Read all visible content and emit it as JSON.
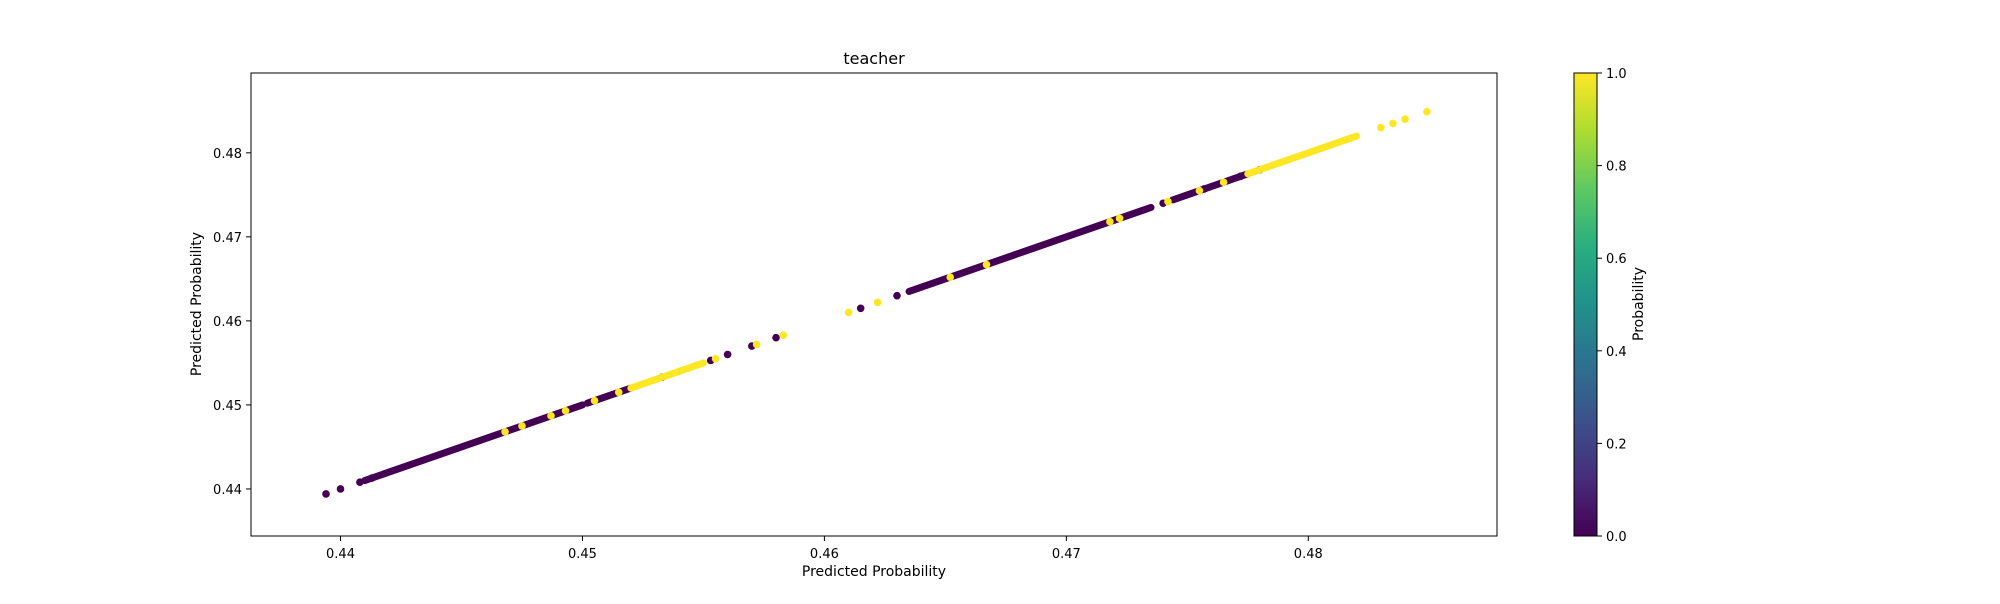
{
  "chart_data": {
    "type": "scatter",
    "title": "teacher",
    "xlabel": "Predicted Probability",
    "ylabel": "Predicted Probability",
    "xlim": [
      0.4363,
      0.4878
    ],
    "ylim": [
      0.4344,
      0.4895
    ],
    "xticks": [
      "0.44",
      "0.45",
      "0.46",
      "0.47",
      "0.48"
    ],
    "yticks": [
      "0.44",
      "0.45",
      "0.46",
      "0.47",
      "0.48"
    ],
    "grid": false,
    "colorbar": {
      "label": "Probability",
      "range": [
        0.0,
        1.0
      ],
      "ticks": [
        "0.0",
        "0.2",
        "0.4",
        "0.6",
        "0.8",
        "1.0"
      ],
      "colormap": "viridis"
    },
    "colors": {
      "class_0": "#440154",
      "class_1": "#fde725"
    },
    "series": [
      {
        "value": 0,
        "segments": [
          [
            0.441,
            0.45
          ],
          [
            0.4502,
            0.452
          ],
          [
            0.4635,
            0.4735
          ],
          [
            0.4744,
            0.4775
          ]
        ],
        "points": [
          [
            0.4394,
            0.4394
          ],
          [
            0.44,
            0.44
          ],
          [
            0.4408,
            0.4408
          ],
          [
            0.4413,
            0.4413
          ],
          [
            0.4533,
            0.4533
          ],
          [
            0.4553,
            0.4553
          ],
          [
            0.456,
            0.456
          ],
          [
            0.457,
            0.457
          ],
          [
            0.458,
            0.458
          ],
          [
            0.4615,
            0.4615
          ],
          [
            0.463,
            0.463
          ],
          [
            0.474,
            0.474
          ],
          [
            0.4757,
            0.4757
          ],
          [
            0.4772,
            0.4772
          ],
          [
            0.478,
            0.478
          ]
        ]
      },
      {
        "value": 1,
        "segments": [
          [
            0.452,
            0.455
          ],
          [
            0.4775,
            0.482
          ]
        ],
        "points": [
          [
            0.4468,
            0.4468
          ],
          [
            0.4475,
            0.4475
          ],
          [
            0.4487,
            0.4487
          ],
          [
            0.4493,
            0.4493
          ],
          [
            0.4505,
            0.4505
          ],
          [
            0.4515,
            0.4515
          ],
          [
            0.4555,
            0.4555
          ],
          [
            0.4572,
            0.4572
          ],
          [
            0.4583,
            0.4583
          ],
          [
            0.461,
            0.461
          ],
          [
            0.4622,
            0.4622
          ],
          [
            0.4652,
            0.4652
          ],
          [
            0.4667,
            0.4667
          ],
          [
            0.4718,
            0.4718
          ],
          [
            0.4722,
            0.4722
          ],
          [
            0.4742,
            0.4742
          ],
          [
            0.4755,
            0.4755
          ],
          [
            0.4765,
            0.4765
          ],
          [
            0.483,
            0.483
          ],
          [
            0.4835,
            0.4835
          ],
          [
            0.484,
            0.484
          ],
          [
            0.4849,
            0.4849
          ]
        ]
      }
    ]
  }
}
